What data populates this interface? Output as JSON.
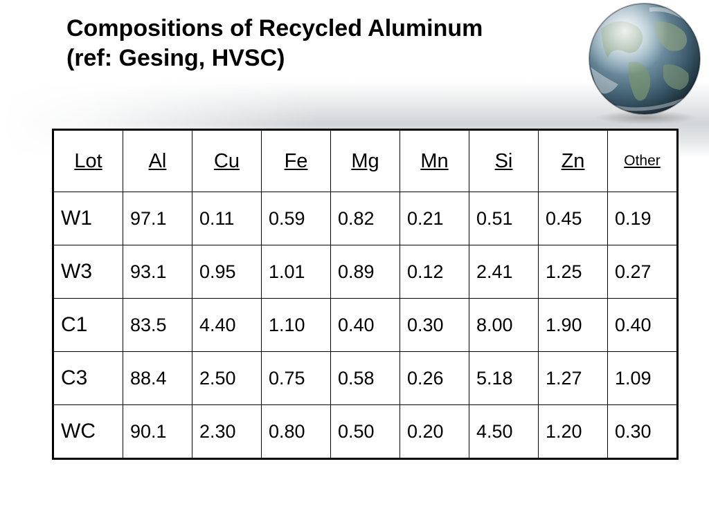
{
  "slide": {
    "title_line1": "Compositions of Recycled Aluminum",
    "title_line2": "(ref: Gesing, HVSC)"
  },
  "decoration": {
    "globe_icon": "earth-globe-icon",
    "band_color": "#d2d5d8"
  },
  "table": {
    "headers": [
      "Lot",
      "Al",
      "Cu",
      "Fe",
      "Mg",
      "Mn",
      "Si",
      "Zn",
      "Other"
    ],
    "rows": [
      [
        "W1",
        "97.1",
        "0.11",
        "0.59",
        "0.82",
        "0.21",
        "0.51",
        "0.45",
        "0.19"
      ],
      [
        "W3",
        "93.1",
        "0.95",
        "1.01",
        "0.89",
        "0.12",
        "2.41",
        "1.25",
        "0.27"
      ],
      [
        "C1",
        "83.5",
        "4.40",
        "1.10",
        "0.40",
        "0.30",
        "8.00",
        "1.90",
        "0.40"
      ],
      [
        "C3",
        "88.4",
        "2.50",
        "0.75",
        "0.58",
        "0.26",
        "5.18",
        "1.27",
        "1.09"
      ],
      [
        "WC",
        "90.1",
        "2.30",
        "0.80",
        "0.50",
        "0.20",
        "4.50",
        "1.20",
        "0.30"
      ]
    ]
  }
}
